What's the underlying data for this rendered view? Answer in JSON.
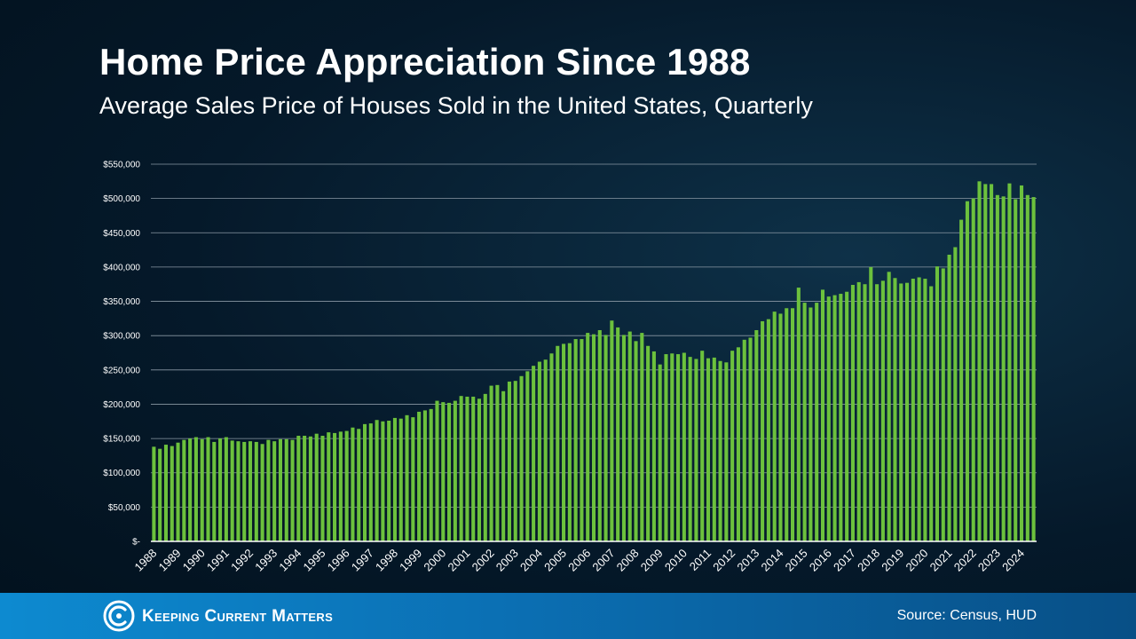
{
  "title": "Home Price Appreciation Since 1988",
  "subtitle": "Average Sales Price of Houses Sold in the United States, Quarterly",
  "footer": {
    "brand": "Keeping Current Matters",
    "source": "Source: Census, HUD"
  },
  "colors": {
    "bar": "#6cc13d",
    "footer": "#0b6fb3",
    "background": "#05192a"
  },
  "chart_data": {
    "type": "bar",
    "title": "Home Price Appreciation Since 1988",
    "subtitle": "Average Sales Price of Houses Sold in the United States, Quarterly",
    "xlabel": "",
    "ylabel": "",
    "ylim": [
      0,
      550000
    ],
    "yticks": [
      0,
      50000,
      100000,
      150000,
      200000,
      250000,
      300000,
      350000,
      400000,
      450000,
      500000,
      550000
    ],
    "ytick_labels": [
      "$-",
      "$50,000",
      "$100,000",
      "$150,000",
      "$200,000",
      "$250,000",
      "$300,000",
      "$350,000",
      "$400,000",
      "$450,000",
      "$500,000",
      "$550,000"
    ],
    "grid": true,
    "xtick_labels": [
      "1988",
      "1989",
      "1990",
      "1991",
      "1992",
      "1993",
      "1994",
      "1995",
      "1996",
      "1997",
      "1998",
      "1999",
      "2000",
      "2001",
      "2002",
      "2003",
      "2004",
      "2005",
      "2006",
      "2007",
      "2008",
      "2009",
      "2010",
      "2011",
      "2012",
      "2013",
      "2014",
      "2015",
      "2016",
      "2017",
      "2018",
      "2019",
      "2020",
      "2021",
      "2022",
      "2023",
      "2024"
    ],
    "series": [
      {
        "values": [
          138000,
          135000,
          141000,
          139000,
          144000,
          148000,
          150000,
          152000,
          149000,
          152000,
          145000,
          150000,
          152000,
          147000,
          146000,
          145000,
          146000,
          145000,
          142000,
          148000,
          146000,
          149000,
          149000,
          148000,
          154000,
          154000,
          153000,
          157000,
          154000,
          159000,
          158000,
          160000,
          161000,
          166000,
          164000,
          171000,
          172000,
          177000,
          175000,
          176000,
          180000,
          179000,
          184000,
          181000,
          189000,
          191000,
          193000,
          205000,
          203000,
          202000,
          205000,
          212000,
          211000,
          211000,
          208000,
          215000,
          227000,
          228000,
          219000,
          233000,
          234000,
          241000,
          248000,
          256000,
          262000,
          265000,
          274000,
          285000,
          288000,
          289000,
          295000,
          295000,
          304000,
          302000,
          308000,
          301000,
          322000,
          312000,
          301000,
          306000,
          292000,
          304000,
          285000,
          277000,
          258000,
          273000,
          274000,
          273000,
          275000,
          269000,
          266000,
          278000,
          267000,
          268000,
          263000,
          261000,
          278000,
          283000,
          294000,
          297000,
          308000,
          321000,
          324000,
          335000,
          332000,
          340000,
          340000,
          370000,
          348000,
          341000,
          348000,
          367000,
          357000,
          359000,
          361000,
          364000,
          374000,
          378000,
          375000,
          400000,
          375000,
          380000,
          393000,
          384000,
          376000,
          377000,
          383000,
          385000,
          383000,
          372000,
          401000,
          398000,
          418000,
          429000,
          469000,
          496000,
          500000,
          525000,
          521000,
          521000,
          505000,
          503000,
          522000,
          499000,
          519000,
          505000,
          502000
        ]
      }
    ]
  }
}
